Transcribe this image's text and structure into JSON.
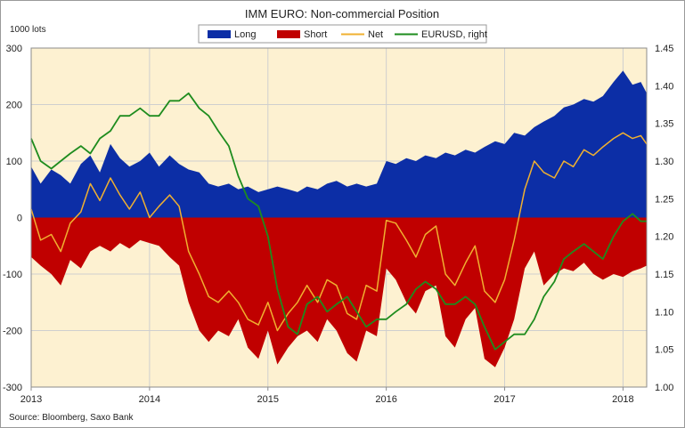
{
  "chart_data": {
    "type": "area",
    "title": "IMM EURO:  Non-commercial  Position",
    "ylabel_left": "1000 lots",
    "source": "Source: Bloomberg, Saxo Bank",
    "legend_placement": "top-center",
    "left_axis": {
      "ylim": [
        -300,
        300
      ],
      "ticks": [
        300,
        200,
        100,
        0,
        -100,
        -200,
        -300
      ]
    },
    "right_axis": {
      "ylim": [
        1.0,
        1.45
      ],
      "ticks": [
        "1.45",
        "1.40",
        "1.35",
        "1.30",
        "1.25",
        "1.20",
        "1.15",
        "1.10",
        "1.05",
        "1.00"
      ]
    },
    "x_axis": {
      "xlim": [
        2013.0,
        2018.2
      ],
      "ticks": [
        2013,
        2014,
        2015,
        2016,
        2017,
        2018
      ]
    },
    "grid": true,
    "background_color": "#fdf1d1",
    "series": [
      {
        "name": "Long",
        "kind": "area",
        "axis": "left",
        "color": "#0c2ea6",
        "x": [
          2013.0,
          2013.08,
          2013.17,
          2013.25,
          2013.33,
          2013.42,
          2013.5,
          2013.58,
          2013.67,
          2013.75,
          2013.83,
          2013.92,
          2014.0,
          2014.08,
          2014.17,
          2014.25,
          2014.33,
          2014.42,
          2014.5,
          2014.58,
          2014.67,
          2014.75,
          2014.83,
          2014.92,
          2015.0,
          2015.08,
          2015.17,
          2015.25,
          2015.33,
          2015.42,
          2015.5,
          2015.58,
          2015.67,
          2015.75,
          2015.83,
          2015.92,
          2016.0,
          2016.08,
          2016.17,
          2016.25,
          2016.33,
          2016.42,
          2016.5,
          2016.58,
          2016.67,
          2016.75,
          2016.83,
          2016.92,
          2017.0,
          2017.08,
          2017.17,
          2017.25,
          2017.33,
          2017.42,
          2017.5,
          2017.58,
          2017.67,
          2017.75,
          2017.83,
          2017.92,
          2018.0,
          2018.08,
          2018.15,
          2018.2
        ],
        "values": [
          90,
          60,
          85,
          75,
          60,
          95,
          110,
          80,
          130,
          105,
          90,
          100,
          115,
          90,
          110,
          95,
          85,
          80,
          60,
          55,
          60,
          50,
          55,
          45,
          50,
          55,
          50,
          45,
          55,
          50,
          60,
          65,
          55,
          60,
          55,
          60,
          100,
          95,
          105,
          100,
          110,
          105,
          115,
          110,
          120,
          115,
          125,
          135,
          130,
          150,
          145,
          160,
          170,
          180,
          195,
          200,
          210,
          205,
          215,
          240,
          260,
          235,
          240,
          220
        ]
      },
      {
        "name": "Short",
        "kind": "area",
        "axis": "left",
        "color": "#c00000",
        "x": [
          2013.0,
          2013.08,
          2013.17,
          2013.25,
          2013.33,
          2013.42,
          2013.5,
          2013.58,
          2013.67,
          2013.75,
          2013.83,
          2013.92,
          2014.0,
          2014.08,
          2014.17,
          2014.25,
          2014.33,
          2014.42,
          2014.5,
          2014.58,
          2014.67,
          2014.75,
          2014.83,
          2014.92,
          2015.0,
          2015.08,
          2015.17,
          2015.25,
          2015.33,
          2015.42,
          2015.5,
          2015.58,
          2015.67,
          2015.75,
          2015.83,
          2015.92,
          2016.0,
          2016.08,
          2016.17,
          2016.25,
          2016.33,
          2016.42,
          2016.5,
          2016.58,
          2016.67,
          2016.75,
          2016.83,
          2016.92,
          2017.0,
          2017.08,
          2017.17,
          2017.25,
          2017.33,
          2017.42,
          2017.5,
          2017.58,
          2017.67,
          2017.75,
          2017.83,
          2017.92,
          2018.0,
          2018.08,
          2018.15,
          2018.2
        ],
        "values": [
          -70,
          -85,
          -100,
          -120,
          -75,
          -90,
          -60,
          -50,
          -60,
          -45,
          -55,
          -40,
          -45,
          -50,
          -70,
          -85,
          -150,
          -200,
          -220,
          -200,
          -210,
          -180,
          -230,
          -250,
          -200,
          -260,
          -230,
          -210,
          -200,
          -220,
          -180,
          -200,
          -240,
          -255,
          -200,
          -210,
          -90,
          -110,
          -150,
          -170,
          -130,
          -120,
          -210,
          -230,
          -180,
          -160,
          -250,
          -265,
          -230,
          -180,
          -90,
          -60,
          -120,
          -100,
          -90,
          -95,
          -80,
          -100,
          -110,
          -100,
          -105,
          -95,
          -90,
          -85
        ]
      },
      {
        "name": "Net",
        "kind": "line",
        "axis": "left",
        "color": "#f0b030",
        "x": [
          2013.0,
          2013.08,
          2013.17,
          2013.25,
          2013.33,
          2013.42,
          2013.5,
          2013.58,
          2013.67,
          2013.75,
          2013.83,
          2013.92,
          2014.0,
          2014.08,
          2014.17,
          2014.25,
          2014.33,
          2014.42,
          2014.5,
          2014.58,
          2014.67,
          2014.75,
          2014.83,
          2014.92,
          2015.0,
          2015.08,
          2015.17,
          2015.25,
          2015.33,
          2015.42,
          2015.5,
          2015.58,
          2015.67,
          2015.75,
          2015.83,
          2015.92,
          2016.0,
          2016.08,
          2016.17,
          2016.25,
          2016.33,
          2016.42,
          2016.5,
          2016.58,
          2016.67,
          2016.75,
          2016.83,
          2016.92,
          2017.0,
          2017.08,
          2017.17,
          2017.25,
          2017.33,
          2017.42,
          2017.5,
          2017.58,
          2017.67,
          2017.75,
          2017.83,
          2017.92,
          2018.0,
          2018.08,
          2018.15,
          2018.2
        ],
        "values": [
          15,
          -40,
          -30,
          -60,
          -10,
          10,
          60,
          30,
          70,
          40,
          15,
          45,
          0,
          20,
          40,
          20,
          -60,
          -100,
          -140,
          -150,
          -130,
          -150,
          -180,
          -190,
          -150,
          -200,
          -170,
          -150,
          -120,
          -150,
          -110,
          -120,
          -170,
          -180,
          -120,
          -130,
          -5,
          -10,
          -40,
          -70,
          -30,
          -15,
          -100,
          -120,
          -80,
          -50,
          -130,
          -150,
          -110,
          -40,
          50,
          100,
          80,
          70,
          100,
          90,
          120,
          110,
          125,
          140,
          150,
          140,
          145,
          130
        ]
      },
      {
        "name": "EURUSD, right",
        "kind": "line",
        "axis": "right",
        "color": "#1e8c1e",
        "x": [
          2013.0,
          2013.08,
          2013.17,
          2013.25,
          2013.33,
          2013.42,
          2013.5,
          2013.58,
          2013.67,
          2013.75,
          2013.83,
          2013.92,
          2014.0,
          2014.08,
          2014.17,
          2014.25,
          2014.33,
          2014.42,
          2014.5,
          2014.58,
          2014.67,
          2014.75,
          2014.83,
          2014.92,
          2015.0,
          2015.08,
          2015.17,
          2015.25,
          2015.33,
          2015.42,
          2015.5,
          2015.58,
          2015.67,
          2015.75,
          2015.83,
          2015.92,
          2016.0,
          2016.08,
          2016.17,
          2016.25,
          2016.33,
          2016.42,
          2016.5,
          2016.58,
          2016.67,
          2016.75,
          2016.83,
          2016.92,
          2017.0,
          2017.08,
          2017.17,
          2017.25,
          2017.33,
          2017.42,
          2017.5,
          2017.58,
          2017.67,
          2017.75,
          2017.83,
          2017.92,
          2018.0,
          2018.08,
          2018.15,
          2018.2
        ],
        "values": [
          1.33,
          1.3,
          1.29,
          1.3,
          1.31,
          1.32,
          1.31,
          1.33,
          1.34,
          1.36,
          1.36,
          1.37,
          1.36,
          1.36,
          1.38,
          1.38,
          1.39,
          1.37,
          1.36,
          1.34,
          1.32,
          1.28,
          1.25,
          1.24,
          1.2,
          1.13,
          1.08,
          1.07,
          1.11,
          1.12,
          1.1,
          1.11,
          1.12,
          1.1,
          1.08,
          1.09,
          1.09,
          1.1,
          1.11,
          1.13,
          1.14,
          1.13,
          1.11,
          1.11,
          1.12,
          1.11,
          1.08,
          1.05,
          1.06,
          1.07,
          1.07,
          1.09,
          1.12,
          1.14,
          1.17,
          1.18,
          1.19,
          1.18,
          1.17,
          1.2,
          1.22,
          1.23,
          1.22,
          1.22
        ]
      }
    ]
  }
}
